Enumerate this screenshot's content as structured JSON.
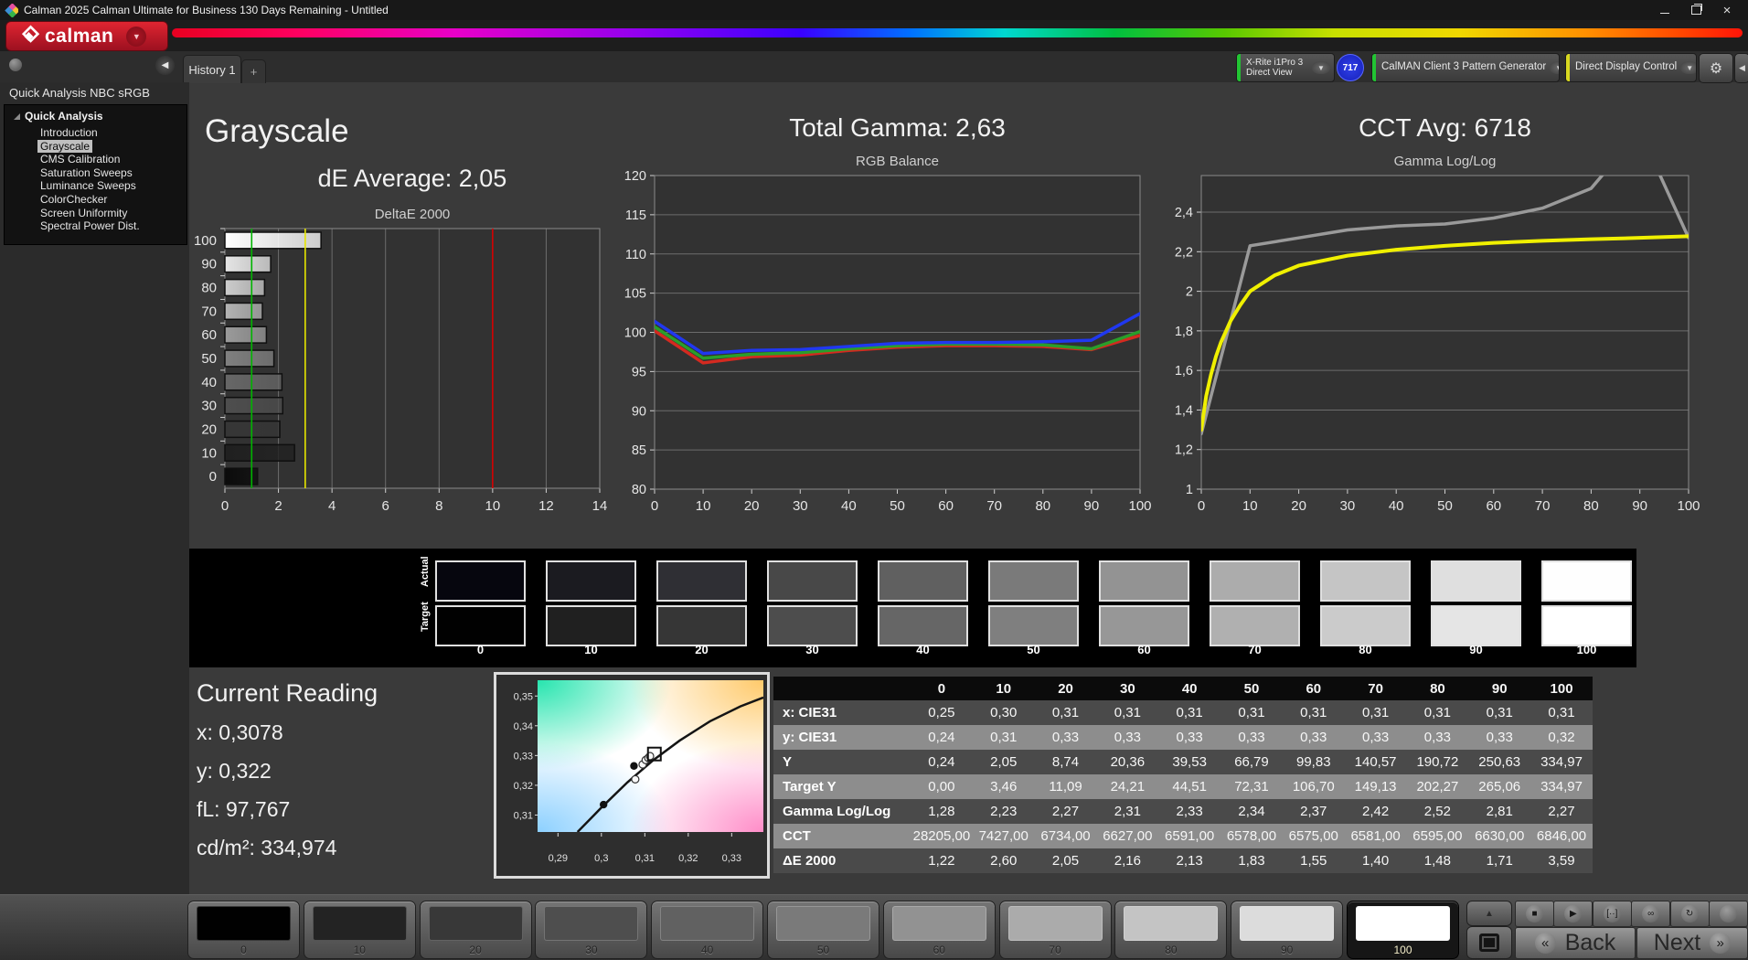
{
  "window": {
    "title": "Calman 2025 Calman Ultimate for Business 130 Days Remaining  - Untitled"
  },
  "logo": {
    "text": "calman",
    "caret": "▼"
  },
  "toolbar": {
    "tab": "History 1",
    "tab_add": "+",
    "meter": {
      "line1": "X-Rite i1Pro 3",
      "line2": "Direct View",
      "accent": "#22c433",
      "badge": "717"
    },
    "pattern_generator": {
      "label": "CalMAN Client 3 Pattern Generator",
      "accent": "#22c433"
    },
    "display_control": {
      "label": "Direct Display Control",
      "accent": "#d8d820"
    },
    "gear_icon": "⚙",
    "collapse_icon": "◀"
  },
  "sidebar": {
    "header": "Quick Analysis NBC sRGB",
    "root": "Quick Analysis",
    "items": [
      {
        "label": "Introduction",
        "selected": false
      },
      {
        "label": "Grayscale",
        "selected": true
      },
      {
        "label": "CMS Calibration",
        "selected": false
      },
      {
        "label": "Saturation Sweeps",
        "selected": false
      },
      {
        "label": "Luminance Sweeps",
        "selected": false
      },
      {
        "label": "ColorChecker",
        "selected": false
      },
      {
        "label": "Screen Uniformity",
        "selected": false
      },
      {
        "label": "Spectral Power Dist.",
        "selected": false
      }
    ]
  },
  "headings": {
    "grayscale": "Grayscale",
    "de_average": "dE Average: 2,05",
    "total_gamma": "Total Gamma: 2,63",
    "cct_avg": "CCT Avg: 6718"
  },
  "chart_data": [
    {
      "type": "bar",
      "orientation": "horizontal",
      "title": "DeltaE 2000",
      "categories": [
        "100",
        "90",
        "80",
        "70",
        "60",
        "50",
        "40",
        "30",
        "20",
        "10",
        "0"
      ],
      "values": [
        3.59,
        1.71,
        1.48,
        1.4,
        1.55,
        1.83,
        2.13,
        2.16,
        2.05,
        2.6,
        1.22
      ],
      "bar_colors": [
        "#ffffff",
        "#e6e6e6",
        "#cdcdcd",
        "#b4b4b4",
        "#9b9b9b",
        "#808080",
        "#676767",
        "#4e4e4e",
        "#363636",
        "#202020",
        "#0b0b0b"
      ],
      "xlim": [
        0,
        14
      ],
      "xticks": [
        0,
        2,
        4,
        6,
        8,
        10,
        12,
        14
      ],
      "ref_lines": [
        {
          "value": 1,
          "color": "#00b400"
        },
        {
          "value": 3,
          "color": "#e6e600"
        },
        {
          "value": 10,
          "color": "#d40000"
        }
      ]
    },
    {
      "type": "line",
      "title": "RGB Balance",
      "x": [
        0,
        10,
        20,
        30,
        40,
        50,
        60,
        70,
        80,
        90,
        100
      ],
      "xlim": [
        0,
        100
      ],
      "ylim": [
        80,
        120
      ],
      "yticks": [
        80,
        85,
        90,
        95,
        100,
        105,
        110,
        115,
        120
      ],
      "ytick_labels": [
        "80",
        "85",
        "90",
        "95",
        "100",
        "105",
        "110",
        "115",
        "120"
      ],
      "xticks": [
        0,
        10,
        20,
        30,
        40,
        50,
        60,
        70,
        80,
        90,
        100
      ],
      "series": [
        {
          "name": "red",
          "color": "#d42a20",
          "values": [
            100.2,
            96.1,
            96.9,
            97.1,
            97.7,
            98.1,
            98.3,
            98.3,
            98.2,
            97.8,
            99.6
          ]
        },
        {
          "name": "green",
          "color": "#2a9e2a",
          "values": [
            100.7,
            96.7,
            97.2,
            97.4,
            97.9,
            98.3,
            98.5,
            98.5,
            98.4,
            97.9,
            100.1
          ]
        },
        {
          "name": "blue",
          "color": "#2038f0",
          "values": [
            101.4,
            97.3,
            97.7,
            97.8,
            98.2,
            98.6,
            98.7,
            98.7,
            98.8,
            99.0,
            102.4
          ]
        }
      ]
    },
    {
      "type": "line",
      "title": "Gamma Log/Log",
      "x": [
        0,
        10,
        20,
        30,
        40,
        50,
        60,
        70,
        80,
        90,
        100
      ],
      "xlim": [
        0,
        100
      ],
      "ylim": [
        1,
        2.585
      ],
      "yticks": [
        1,
        1.2,
        1.4,
        1.6,
        1.8,
        2,
        2.2,
        2.4
      ],
      "ytick_labels": [
        "1",
        "1,2",
        "1,4",
        "1,6",
        "1,8",
        "2",
        "2,2",
        "2,4"
      ],
      "xticks": [
        0,
        10,
        20,
        30,
        40,
        50,
        60,
        70,
        80,
        90,
        100
      ],
      "series": [
        {
          "name": "measured",
          "color": "#9a9a9a",
          "values": [
            1.28,
            2.23,
            2.27,
            2.31,
            2.33,
            2.34,
            2.37,
            2.42,
            2.52,
            2.81,
            2.27
          ]
        },
        {
          "name": "target",
          "color": "#f0f000",
          "width": 4,
          "x": [
            0,
            1,
            2,
            3,
            4,
            6,
            8,
            10,
            15,
            20,
            30,
            40,
            50,
            60,
            70,
            80,
            90,
            100
          ],
          "values": [
            1.3,
            1.47,
            1.58,
            1.67,
            1.74,
            1.85,
            1.93,
            2.0,
            2.08,
            2.13,
            2.18,
            2.21,
            2.23,
            2.245,
            2.255,
            2.263,
            2.27,
            2.278
          ]
        }
      ]
    },
    {
      "type": "scatter",
      "title": "CIE xy chromaticity (white point detail)",
      "xlim": [
        0.2853,
        0.3373
      ],
      "ylim": [
        0.3043,
        0.3553
      ],
      "xticks": [
        0.29,
        0.3,
        0.31,
        0.32,
        0.33
      ],
      "xtick_labels": [
        "0,29",
        "0,3",
        "0,31",
        "0,32",
        "0,33"
      ],
      "yticks": [
        0.31,
        0.32,
        0.33,
        0.34,
        0.35
      ],
      "ytick_labels": [
        "0,31",
        "0,32",
        "0,33",
        "0,34",
        "0,35"
      ],
      "locus": [
        [
          0.2945,
          0.3043
        ],
        [
          0.3,
          0.3125
        ],
        [
          0.306,
          0.321
        ],
        [
          0.312,
          0.3285
        ],
        [
          0.318,
          0.335
        ],
        [
          0.325,
          0.3415
        ],
        [
          0.332,
          0.3465
        ],
        [
          0.3373,
          0.3495
        ]
      ],
      "points": [
        {
          "x": 0.3005,
          "y": 0.3135,
          "style": "filled"
        },
        {
          "x": 0.3075,
          "y": 0.3265,
          "style": "filled"
        },
        {
          "x": 0.3078,
          "y": 0.322,
          "style": "open"
        },
        {
          "x": 0.3095,
          "y": 0.327,
          "style": "open"
        },
        {
          "x": 0.3102,
          "y": 0.3285,
          "style": "open"
        },
        {
          "x": 0.3108,
          "y": 0.3292,
          "style": "open"
        },
        {
          "x": 0.3112,
          "y": 0.3298,
          "style": "open"
        },
        {
          "x": 0.3122,
          "y": 0.3305,
          "style": "square"
        }
      ]
    }
  ],
  "band": {
    "row_labels": [
      "Actual",
      "Target"
    ],
    "levels": [
      "0",
      "10",
      "20",
      "30",
      "40",
      "50",
      "60",
      "70",
      "80",
      "90",
      "100"
    ],
    "actual_colors": [
      "#06060e",
      "#1b1b20",
      "#2f2f34",
      "#484848",
      "#606060",
      "#7a7a7a",
      "#939393",
      "#acacac",
      "#c5c5c5",
      "#dfdfdf",
      "#fefefe"
    ],
    "target_colors": [
      "#010101",
      "#202020",
      "#363636",
      "#4d4d4d",
      "#666666",
      "#7f7f7f",
      "#979797",
      "#b0b0b0",
      "#cbcbcb",
      "#e5e5e5",
      "#ffffff"
    ]
  },
  "current_reading": {
    "title": "Current Reading",
    "lines": [
      {
        "label": "x:",
        "value": "0,3078"
      },
      {
        "label": "y:",
        "value": "0,322"
      },
      {
        "label": "fL:",
        "value": "97,767"
      },
      {
        "label": "cd/m²:",
        "value": "334,974"
      }
    ]
  },
  "table": {
    "col_headers": [
      "0",
      "10",
      "20",
      "30",
      "40",
      "50",
      "60",
      "70",
      "80",
      "90",
      "100"
    ],
    "rows": [
      {
        "label": "x: CIE31",
        "values": [
          "0,25",
          "0,30",
          "0,31",
          "0,31",
          "0,31",
          "0,31",
          "0,31",
          "0,31",
          "0,31",
          "0,31",
          "0,31"
        ]
      },
      {
        "label": "y: CIE31",
        "values": [
          "0,24",
          "0,31",
          "0,33",
          "0,33",
          "0,33",
          "0,33",
          "0,33",
          "0,33",
          "0,33",
          "0,33",
          "0,32"
        ]
      },
      {
        "label": "Y",
        "values": [
          "0,24",
          "2,05",
          "8,74",
          "20,36",
          "39,53",
          "66,79",
          "99,83",
          "140,57",
          "190,72",
          "250,63",
          "334,97"
        ]
      },
      {
        "label": "Target Y",
        "values": [
          "0,00",
          "3,46",
          "11,09",
          "24,21",
          "44,51",
          "72,31",
          "106,70",
          "149,13",
          "202,27",
          "265,06",
          "334,97"
        ]
      },
      {
        "label": "Gamma Log/Log",
        "values": [
          "1,28",
          "2,23",
          "2,27",
          "2,31",
          "2,33",
          "2,34",
          "2,37",
          "2,42",
          "2,52",
          "2,81",
          "2,27"
        ]
      },
      {
        "label": "CCT",
        "values": [
          "28205,00",
          "7427,00",
          "6734,00",
          "6627,00",
          "6591,00",
          "6578,00",
          "6575,00",
          "6581,00",
          "6595,00",
          "6630,00",
          "6846,00"
        ]
      },
      {
        "label": "ΔE 2000",
        "values": [
          "1,22",
          "2,60",
          "2,05",
          "2,16",
          "2,13",
          "1,83",
          "1,55",
          "1,40",
          "1,48",
          "1,71",
          "3,59"
        ]
      }
    ]
  },
  "bottom_bar": {
    "levels": [
      "0",
      "10",
      "20",
      "30",
      "40",
      "50",
      "60",
      "70",
      "80",
      "90",
      "100"
    ],
    "level_colors": [
      "#010101",
      "#232323",
      "#383838",
      "#4e4e4e",
      "#616161",
      "#7a7a7a",
      "#929292",
      "#ababab",
      "#c4c4c4",
      "#dcdcdc",
      "#ffffff"
    ],
    "selected": "100",
    "chevron_up": "▲",
    "transport": [
      {
        "name": "stop-button",
        "glyph": "■"
      },
      {
        "name": "play-button",
        "glyph": "▶"
      },
      {
        "name": "pattern-button",
        "glyph": "[··]"
      },
      {
        "name": "loop-button",
        "glyph": "∞"
      },
      {
        "name": "refresh-button",
        "glyph": "↻"
      },
      {
        "name": "record-button",
        "glyph": ""
      }
    ],
    "back_icon": "«",
    "back_label": "Back",
    "next_label": "Next",
    "next_icon": "»"
  }
}
